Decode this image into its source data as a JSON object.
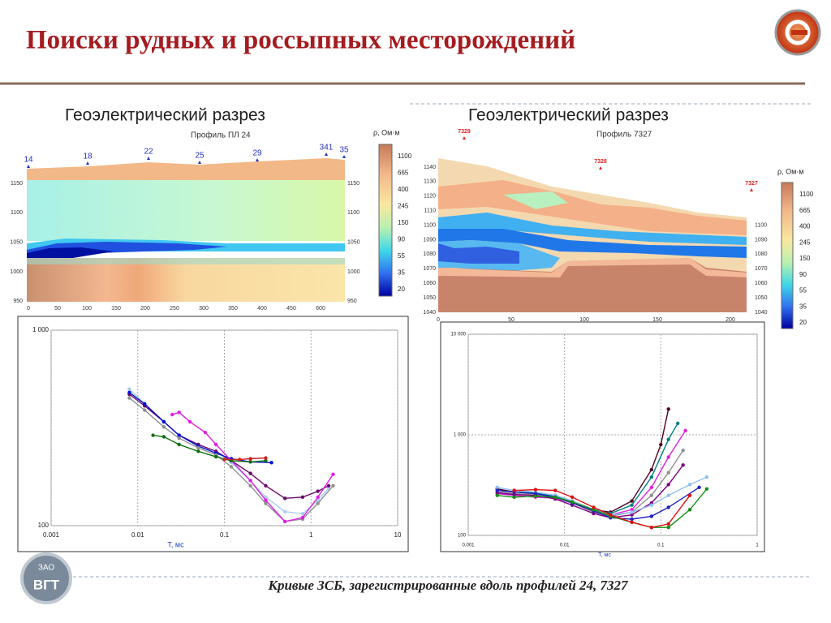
{
  "slide": {
    "title": "Поиски рудных и россыпных месторождений",
    "caption": "Кривые ЗСБ, зарегистрированные вдоль профилей 24, 7327",
    "logo_top": "ЗАО",
    "logo_bottom": "ВГТ"
  },
  "sections": [
    {
      "title": "Геоэлектрический разрез",
      "subtitle": "Профиль ПЛ 24",
      "stations": [
        "14",
        "18",
        "22",
        "25",
        "29",
        "341",
        "35"
      ],
      "xticks": [
        0,
        50,
        100,
        150,
        200,
        250,
        300,
        350,
        400,
        450,
        600
      ],
      "yticks": [
        950,
        1000,
        1050,
        1100,
        1150
      ],
      "legend_title": "ρ, Ом·м",
      "legend": [
        1100,
        665,
        400,
        245,
        150,
        90,
        55,
        35,
        20
      ]
    },
    {
      "title": "Геоэлектрический разрез",
      "subtitle": "Профиль 7327",
      "stations": [
        "7329",
        "7328",
        "7327"
      ],
      "xticks": [
        0,
        50,
        100,
        150,
        200
      ],
      "yticks": [
        1040,
        1050,
        1060,
        1070,
        1080,
        1090,
        1100,
        1110,
        1120,
        1130,
        1140
      ],
      "legend_title": "ρ, Ом·м",
      "legend": [
        1100,
        665,
        400,
        245,
        150,
        90,
        55,
        35,
        20
      ]
    }
  ],
  "chart_data": [
    {
      "type": "line",
      "xlabel": "T, мс",
      "xscale": "log",
      "yscale": "log",
      "grid": true,
      "xlim": [
        0.001,
        10
      ],
      "xticks": [
        0.001,
        0.01,
        0.1,
        1,
        10
      ],
      "ylim": [
        100,
        1000
      ],
      "yticks": [
        100,
        {
          "value": 1000,
          "label": "1 000"
        }
      ],
      "series": [
        {
          "color": "#a8d0f0",
          "x": [
            0.008,
            0.012,
            0.02,
            0.03,
            0.05,
            0.08,
            0.12,
            0.2,
            0.3,
            0.5,
            0.8,
            1.2,
            1.6
          ],
          "values": [
            500,
            420,
            340,
            290,
            260,
            240,
            210,
            170,
            140,
            118,
            115,
            135,
            155
          ]
        },
        {
          "color": "#6a0a6a",
          "x": [
            0.008,
            0.012,
            0.02,
            0.03,
            0.05,
            0.08,
            0.12,
            0.2,
            0.3,
            0.5,
            0.8,
            1.2,
            1.6
          ],
          "values": [
            470,
            410,
            340,
            290,
            260,
            240,
            215,
            185,
            160,
            138,
            140,
            150,
            160
          ]
        },
        {
          "color": "#0010d8",
          "x": [
            0.008,
            0.012,
            0.02,
            0.03,
            0.05,
            0.08,
            0.12,
            0.2,
            0.35
          ],
          "values": [
            480,
            420,
            340,
            290,
            255,
            235,
            220,
            212,
            210
          ]
        },
        {
          "color": "#909090",
          "x": [
            0.008,
            0.012,
            0.02,
            0.03,
            0.05,
            0.08,
            0.12,
            0.2,
            0.3,
            0.5,
            0.8,
            1.2,
            1.8
          ],
          "values": [
            450,
            390,
            320,
            280,
            250,
            230,
            200,
            160,
            130,
            105,
            108,
            130,
            160
          ]
        },
        {
          "color": "#e020e0",
          "x": [
            0.025,
            0.03,
            0.04,
            0.06,
            0.08,
            0.12,
            0.2,
            0.3,
            0.5,
            0.8,
            1.2,
            1.8
          ],
          "values": [
            370,
            380,
            340,
            300,
            260,
            215,
            170,
            135,
            105,
            110,
            140,
            183
          ]
        },
        {
          "color": "#107010",
          "x": [
            0.015,
            0.02,
            0.03,
            0.05,
            0.08,
            0.12,
            0.2,
            0.3
          ],
          "values": [
            290,
            285,
            260,
            240,
            225,
            215,
            212,
            215
          ]
        },
        {
          "color": "#cc2222",
          "x": [
            0.1,
            0.15,
            0.2,
            0.3
          ],
          "values": [
            218,
            218,
            220,
            222
          ]
        }
      ]
    },
    {
      "type": "line",
      "xlabel": "T, мс",
      "xscale": "log",
      "yscale": "log",
      "grid": true,
      "xlim": [
        0.001,
        1
      ],
      "xticks": [
        0.001,
        0.01,
        0.1,
        1
      ],
      "ylim": [
        100,
        10000
      ],
      "yticks": [
        100,
        {
          "value": 1000,
          "label": "1 000"
        },
        {
          "value": 10000,
          "label": "10 000"
        }
      ],
      "series": [
        {
          "color": "#500020",
          "x": [
            0.002,
            0.003,
            0.005,
            0.008,
            0.012,
            0.02,
            0.03,
            0.05,
            0.08,
            0.1,
            0.12
          ],
          "values": [
            290,
            270,
            260,
            250,
            220,
            180,
            170,
            220,
            450,
            800,
            1800
          ]
        },
        {
          "color": "#008080",
          "x": [
            0.002,
            0.003,
            0.005,
            0.008,
            0.012,
            0.02,
            0.03,
            0.05,
            0.08,
            0.12,
            0.15
          ],
          "values": [
            280,
            270,
            265,
            245,
            215,
            180,
            165,
            200,
            380,
            900,
            1300
          ]
        },
        {
          "color": "#e020e0",
          "x": [
            0.002,
            0.003,
            0.005,
            0.008,
            0.012,
            0.02,
            0.03,
            0.05,
            0.08,
            0.12,
            0.18
          ],
          "values": [
            260,
            250,
            240,
            235,
            210,
            175,
            160,
            180,
            300,
            600,
            1100
          ]
        },
        {
          "color": "#909090",
          "x": [
            0.002,
            0.003,
            0.005,
            0.008,
            0.012,
            0.02,
            0.03,
            0.05,
            0.08,
            0.12,
            0.17
          ],
          "values": [
            270,
            260,
            255,
            240,
            210,
            170,
            155,
            170,
            250,
            420,
            700
          ]
        },
        {
          "color": "#800080",
          "x": [
            0.002,
            0.003,
            0.005,
            0.008,
            0.012,
            0.02,
            0.03,
            0.05,
            0.08,
            0.12,
            0.17
          ],
          "values": [
            265,
            255,
            250,
            230,
            200,
            165,
            150,
            160,
            210,
            320,
            500
          ]
        },
        {
          "color": "#90c0f0",
          "x": [
            0.002,
            0.003,
            0.005,
            0.008,
            0.012,
            0.02,
            0.03,
            0.05,
            0.08,
            0.12,
            0.2,
            0.3
          ],
          "values": [
            300,
            280,
            270,
            250,
            220,
            180,
            160,
            170,
            200,
            250,
            320,
            380
          ]
        },
        {
          "color": "#2020c0",
          "x": [
            0.002,
            0.003,
            0.005,
            0.008,
            0.012,
            0.02,
            0.03,
            0.05,
            0.08,
            0.12,
            0.25
          ],
          "values": [
            280,
            270,
            260,
            240,
            210,
            175,
            150,
            145,
            155,
            190,
            300
          ]
        },
        {
          "color": "#109010",
          "x": [
            0.002,
            0.003,
            0.005,
            0.008,
            0.012,
            0.02,
            0.03,
            0.05,
            0.08,
            0.12,
            0.2,
            0.3
          ],
          "values": [
            250,
            240,
            245,
            240,
            215,
            180,
            155,
            135,
            120,
            120,
            180,
            290
          ]
        },
        {
          "color": "#dd1010",
          "x": [
            0.003,
            0.005,
            0.008,
            0.012,
            0.02,
            0.03,
            0.05,
            0.08,
            0.12,
            0.2
          ],
          "values": [
            280,
            285,
            280,
            240,
            190,
            160,
            135,
            120,
            130,
            250
          ]
        }
      ]
    }
  ]
}
